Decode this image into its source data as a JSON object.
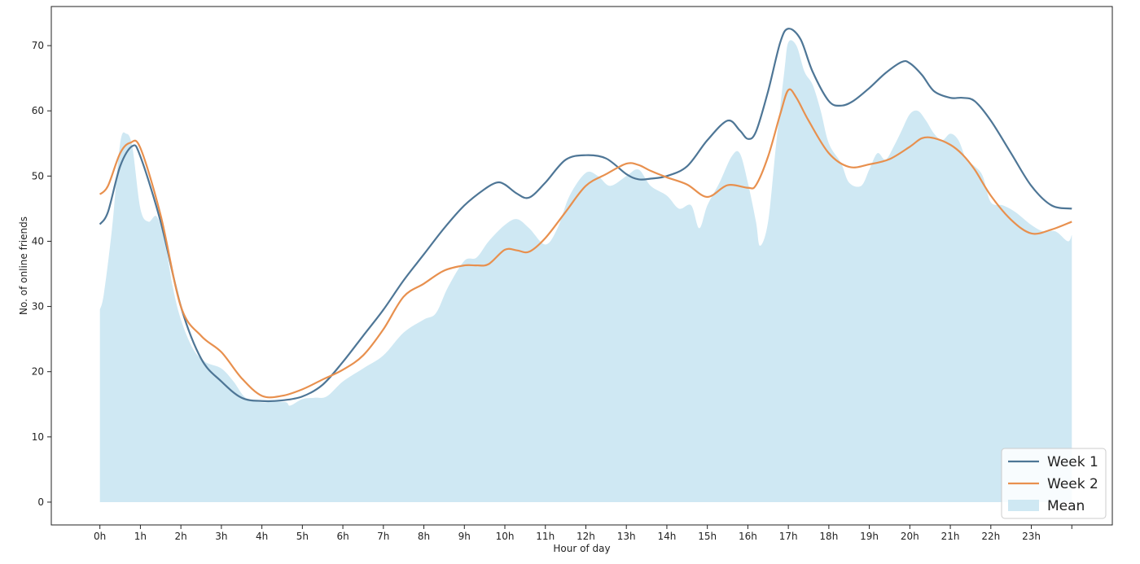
{
  "chart_data": {
    "type": "line",
    "xlabel": "Hour of day",
    "ylabel": "No. of online friends",
    "xlim": [
      -1.2,
      25.0
    ],
    "ylim": [
      -3.5,
      76
    ],
    "x_ticks": [
      {
        "value": 0,
        "label": "0h"
      },
      {
        "value": 1,
        "label": "1h"
      },
      {
        "value": 2,
        "label": "2h"
      },
      {
        "value": 3,
        "label": "3h"
      },
      {
        "value": 4,
        "label": "4h"
      },
      {
        "value": 5,
        "label": "5h"
      },
      {
        "value": 6,
        "label": "6h"
      },
      {
        "value": 7,
        "label": "7h"
      },
      {
        "value": 8,
        "label": "8h"
      },
      {
        "value": 9,
        "label": "9h"
      },
      {
        "value": 10,
        "label": "10h"
      },
      {
        "value": 11,
        "label": "11h"
      },
      {
        "value": 12,
        "label": "12h"
      },
      {
        "value": 13,
        "label": "13h"
      },
      {
        "value": 14,
        "label": "14h"
      },
      {
        "value": 15,
        "label": "15h"
      },
      {
        "value": 16,
        "label": "16h"
      },
      {
        "value": 17,
        "label": "17h"
      },
      {
        "value": 18,
        "label": "18h"
      },
      {
        "value": 19,
        "label": "19h"
      },
      {
        "value": 20,
        "label": "20h"
      },
      {
        "value": 21,
        "label": "21h"
      },
      {
        "value": 22,
        "label": "22h"
      },
      {
        "value": 23,
        "label": "23h"
      },
      {
        "value": 24,
        "label": ""
      }
    ],
    "y_ticks": [
      0,
      10,
      20,
      30,
      40,
      50,
      60,
      70
    ],
    "grid": false,
    "legend": "bottom-right",
    "series": [
      {
        "name": "Week 1",
        "kind": "line",
        "color": "#4e7696",
        "x": [
          0,
          0.2,
          0.5,
          0.8,
          1.0,
          1.5,
          2.0,
          2.5,
          3.0,
          3.5,
          4.0,
          4.5,
          5.0,
          5.5,
          6.0,
          6.5,
          7.0,
          7.5,
          8.0,
          8.5,
          9.0,
          9.5,
          9.8,
          10.0,
          10.3,
          10.6,
          11.0,
          11.5,
          12.0,
          12.5,
          13.0,
          13.3,
          13.6,
          14.0,
          14.5,
          15.0,
          15.5,
          15.8,
          16.0,
          16.2,
          16.5,
          16.8,
          17.0,
          17.3,
          17.6,
          18.0,
          18.3,
          18.6,
          19.0,
          19.4,
          19.8,
          20.0,
          20.3,
          20.6,
          21.0,
          21.3,
          21.6,
          22.0,
          22.5,
          23.0,
          23.5,
          24.0
        ],
        "values": [
          42.6,
          44.5,
          51.5,
          54.6,
          53.0,
          43.0,
          30.0,
          22.0,
          18.5,
          16.0,
          15.5,
          15.6,
          16.2,
          18.0,
          21.5,
          25.5,
          29.5,
          34.0,
          38.0,
          42.0,
          45.5,
          48.0,
          49.0,
          48.7,
          47.3,
          46.7,
          49.0,
          52.5,
          53.2,
          52.7,
          50.3,
          49.5,
          49.6,
          50.0,
          51.5,
          55.5,
          58.5,
          57.0,
          55.7,
          56.8,
          63.0,
          70.5,
          72.6,
          71.0,
          66.0,
          61.5,
          60.8,
          61.5,
          63.5,
          65.8,
          67.5,
          67.3,
          65.5,
          63.0,
          62.0,
          62.0,
          61.5,
          58.5,
          53.5,
          48.5,
          45.5,
          45.0
        ]
      },
      {
        "name": "Week 2",
        "kind": "line",
        "color": "#e8904e",
        "x": [
          0,
          0.2,
          0.5,
          0.75,
          1.0,
          1.5,
          2.0,
          2.5,
          3.0,
          3.5,
          4.0,
          4.5,
          5.0,
          5.5,
          6.0,
          6.5,
          7.0,
          7.5,
          8.0,
          8.5,
          9.0,
          9.3,
          9.6,
          10.0,
          10.3,
          10.6,
          11.0,
          11.5,
          12.0,
          12.5,
          13.0,
          13.3,
          13.6,
          14.0,
          14.5,
          15.0,
          15.5,
          16.0,
          16.2,
          16.5,
          16.8,
          17.0,
          17.2,
          17.5,
          18.0,
          18.5,
          19.0,
          19.5,
          20.0,
          20.3,
          20.6,
          21.0,
          21.3,
          21.6,
          22.0,
          22.5,
          23.0,
          23.5,
          24.0
        ],
        "values": [
          47.2,
          48.5,
          53.5,
          55.1,
          54.3,
          44.0,
          30.0,
          25.5,
          23.0,
          19.0,
          16.3,
          16.3,
          17.3,
          18.8,
          20.3,
          22.5,
          26.5,
          31.5,
          33.5,
          35.5,
          36.3,
          36.3,
          36.5,
          38.7,
          38.6,
          38.4,
          40.5,
          44.5,
          48.5,
          50.3,
          51.9,
          51.7,
          50.8,
          49.8,
          48.7,
          46.8,
          48.6,
          48.2,
          48.6,
          53.0,
          59.5,
          63.2,
          62.0,
          58.5,
          53.5,
          51.4,
          51.8,
          52.6,
          54.5,
          55.8,
          55.8,
          54.8,
          53.3,
          51.0,
          47.0,
          43.3,
          41.2,
          41.8,
          43.0
        ]
      },
      {
        "name": "Mean",
        "kind": "area",
        "color": "#cfe8f3",
        "x": [
          0,
          0.1,
          0.3,
          0.5,
          0.65,
          0.8,
          1.0,
          1.2,
          1.4,
          1.6,
          1.8,
          2.0,
          2.3,
          2.6,
          3.0,
          3.3,
          3.6,
          4.0,
          4.3,
          4.6,
          4.7,
          5.0,
          5.3,
          5.6,
          6.0,
          6.5,
          7.0,
          7.5,
          8.0,
          8.3,
          8.6,
          9.0,
          9.3,
          9.6,
          10.0,
          10.3,
          10.6,
          11.0,
          11.3,
          11.6,
          12.0,
          12.3,
          12.6,
          13.0,
          13.3,
          13.6,
          14.0,
          14.3,
          14.6,
          14.8,
          15.0,
          15.3,
          15.6,
          15.8,
          16.0,
          16.2,
          16.3,
          16.5,
          16.7,
          16.9,
          17.0,
          17.2,
          17.4,
          17.6,
          17.8,
          18.0,
          18.3,
          18.5,
          18.8,
          19.0,
          19.2,
          19.4,
          19.6,
          19.8,
          20.0,
          20.2,
          20.4,
          20.6,
          20.8,
          21.0,
          21.2,
          21.4,
          21.6,
          21.8,
          22.0,
          22.3,
          22.6,
          23.0,
          23.3,
          23.6,
          23.9,
          24.0
        ],
        "values": [
          29.5,
          32.0,
          42.0,
          55.0,
          56.5,
          54.5,
          45.0,
          43.0,
          43.8,
          40.0,
          33.0,
          28.0,
          23.5,
          21.5,
          20.5,
          18.5,
          16.0,
          15.3,
          15.4,
          15.3,
          14.8,
          15.8,
          16.0,
          16.2,
          18.5,
          20.5,
          22.5,
          26.0,
          28.0,
          29.0,
          33.0,
          37.0,
          37.5,
          40.0,
          42.5,
          43.4,
          42.0,
          39.5,
          42.0,
          47.0,
          50.5,
          50.0,
          48.5,
          50.0,
          51.0,
          48.5,
          47.0,
          45.0,
          45.5,
          42.0,
          45.5,
          49.0,
          53.0,
          53.5,
          49.0,
          43.0,
          39.3,
          43.0,
          55.0,
          66.0,
          70.5,
          70.0,
          66.0,
          64.0,
          60.0,
          55.0,
          52.0,
          49.0,
          48.5,
          51.0,
          53.5,
          52.5,
          54.5,
          57.0,
          59.5,
          60.0,
          58.5,
          56.5,
          55.5,
          56.5,
          55.5,
          52.5,
          51.5,
          50.0,
          46.0,
          45.5,
          44.5,
          42.5,
          41.5,
          41.5,
          40.0,
          41.0
        ]
      }
    ]
  }
}
